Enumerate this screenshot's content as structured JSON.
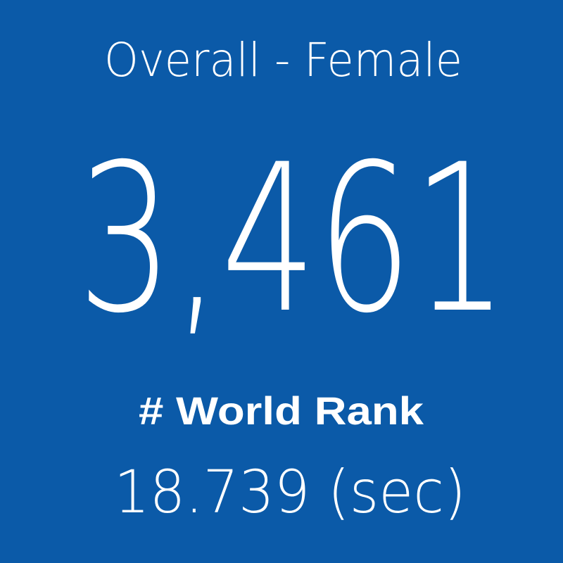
{
  "tile": {
    "title": "Overall - Female",
    "value": "3,461",
    "label": "# World Rank",
    "subvalue": "18.739 (sec)"
  }
}
